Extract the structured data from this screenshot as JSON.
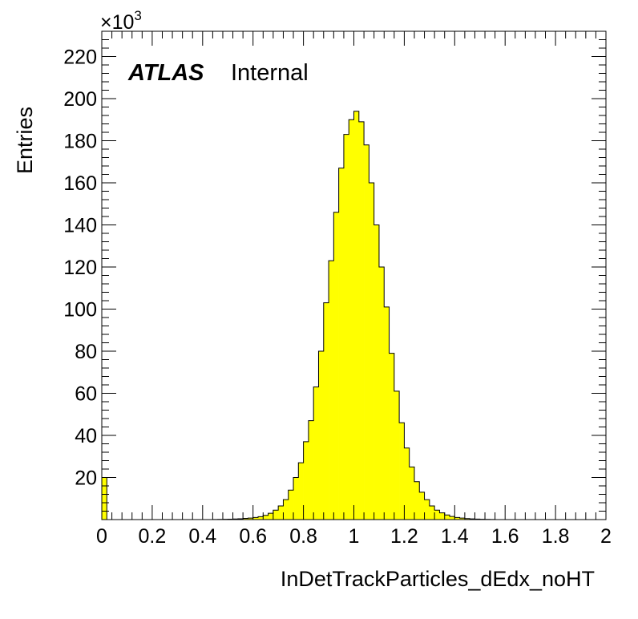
{
  "chart_data": {
    "type": "bar",
    "style": "histogram",
    "xlabel": "InDetTrackParticles_dEdx_noHT",
    "ylabel": "Entries",
    "y_multiplier_base": "×10",
    "y_multiplier_exp": "3",
    "xlim": [
      0,
      2
    ],
    "ylim": [
      0,
      232
    ],
    "x_ticks": [
      "0",
      "0.2",
      "0.4",
      "0.6",
      "0.8",
      "1",
      "1.2",
      "1.4",
      "1.6",
      "1.8",
      "2"
    ],
    "y_ticks": [
      "20",
      "40",
      "60",
      "80",
      "100",
      "120",
      "140",
      "160",
      "180",
      "200",
      "220"
    ],
    "bin_width": 0.02,
    "values": [
      20,
      0,
      0,
      0,
      0,
      0,
      0,
      0,
      0,
      0,
      0,
      0,
      0,
      0,
      0,
      0,
      0,
      0,
      0,
      0,
      0,
      0,
      0.05,
      0.1,
      0.15,
      0.2,
      0.3,
      0.4,
      0.55,
      0.7,
      1.0,
      1.4,
      2.0,
      3.0,
      4.5,
      6.5,
      9.5,
      14,
      20,
      27,
      37,
      47,
      63,
      80,
      103,
      123,
      146,
      167,
      183,
      190,
      194,
      189,
      178,
      160,
      140,
      120,
      101,
      79,
      61,
      46,
      34,
      25,
      18,
      13,
      9.5,
      6.5,
      4.5,
      3.2,
      2.2,
      1.5,
      1.0,
      0.7,
      0.5,
      0.35,
      0.25,
      0.15,
      0.1,
      0.05,
      0,
      0,
      0,
      0,
      0,
      0,
      0,
      0,
      0,
      0,
      0,
      0,
      0,
      0,
      0,
      0,
      0,
      0,
      0,
      0,
      0,
      0
    ],
    "fill_color": "#ffff00",
    "line_color": "#000000",
    "grid": false,
    "legend": "none"
  },
  "labels": {
    "atlas": "ATLAS",
    "internal": "Internal"
  }
}
